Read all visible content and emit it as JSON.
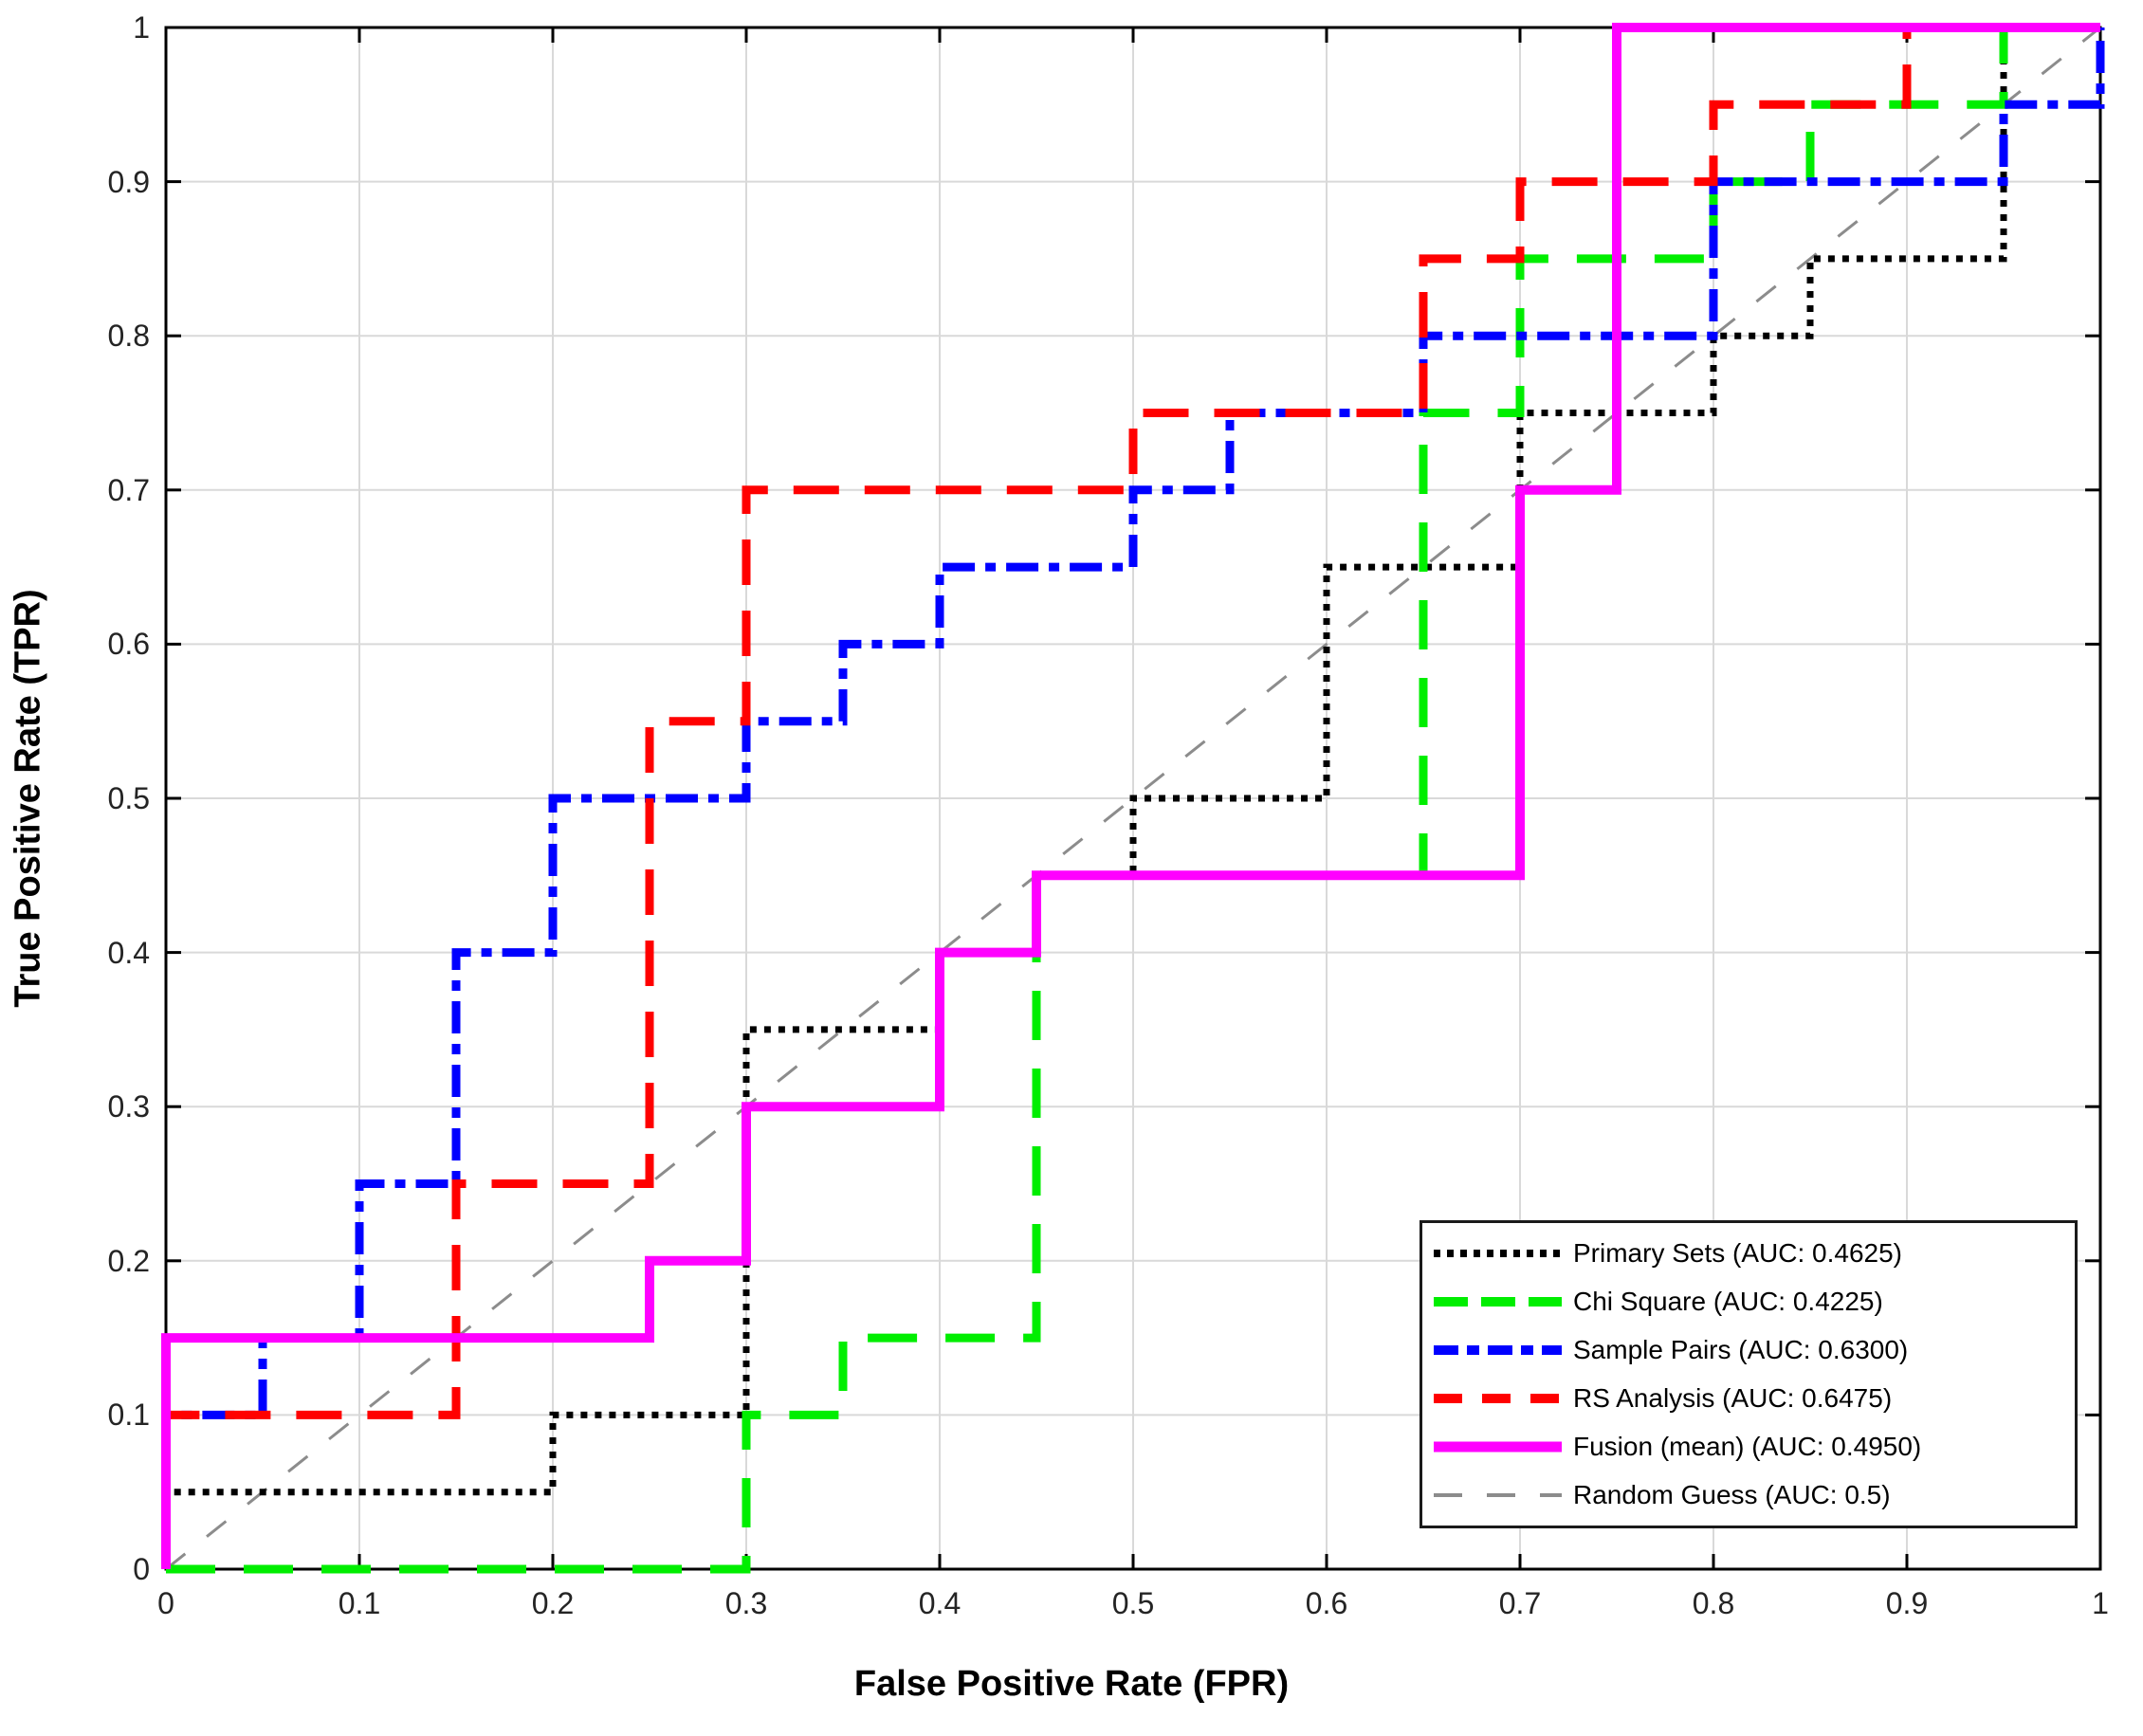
{
  "chart_data": {
    "type": "line",
    "title": "",
    "xlabel": "False Positive Rate (FPR)",
    "ylabel": "True Positive Rate (TPR)",
    "xlim": [
      0,
      1
    ],
    "ylim": [
      0,
      1
    ],
    "grid": true,
    "grid_color": "#d9d9d9",
    "axis_color": "#000000",
    "tick_label_color": "#242424",
    "legend_position": "lower-right",
    "tick_values": [
      0,
      0.1,
      0.2,
      0.3,
      0.4,
      0.5,
      0.6,
      0.7,
      0.8,
      0.9,
      1
    ],
    "x_tick_labels": [
      "0",
      "0.1",
      "0.2",
      "0.3",
      "0.4",
      "0.5",
      "0.6",
      "0.7",
      "0.8",
      "0.9",
      "1"
    ],
    "y_tick_labels": [
      "0",
      "0.1",
      "0.2",
      "0.3",
      "0.4",
      "0.5",
      "0.6",
      "0.7",
      "0.8",
      "0.9",
      "1"
    ],
    "series": [
      {
        "id": "primary-sets",
        "label": "Primary Sets (AUC: 0.4625)",
        "color": "#000000",
        "style": "dotted",
        "width": 7,
        "dash": "7 8",
        "legend_dash": "7 7",
        "points": [
          [
            0,
            0
          ],
          [
            0,
            0.05
          ],
          [
            0.2,
            0.05
          ],
          [
            0.2,
            0.1
          ],
          [
            0.3,
            0.1
          ],
          [
            0.3,
            0.35
          ],
          [
            0.4,
            0.35
          ],
          [
            0.4,
            0.4
          ],
          [
            0.45,
            0.4
          ],
          [
            0.45,
            0.45
          ],
          [
            0.5,
            0.45
          ],
          [
            0.5,
            0.5
          ],
          [
            0.6,
            0.5
          ],
          [
            0.6,
            0.65
          ],
          [
            0.7,
            0.65
          ],
          [
            0.7,
            0.75
          ],
          [
            0.8,
            0.75
          ],
          [
            0.8,
            0.8
          ],
          [
            0.85,
            0.8
          ],
          [
            0.85,
            0.85
          ],
          [
            0.95,
            0.85
          ],
          [
            0.95,
            1
          ],
          [
            1,
            1
          ]
        ]
      },
      {
        "id": "chi-square",
        "label": "Chi Square (AUC: 0.4225)",
        "color": "#00ee00",
        "style": "dashed",
        "width": 9,
        "dash": "52 30",
        "legend_dash": "36 14",
        "points": [
          [
            0,
            0
          ],
          [
            0.3,
            0
          ],
          [
            0.3,
            0.1
          ],
          [
            0.35,
            0.1
          ],
          [
            0.35,
            0.15
          ],
          [
            0.45,
            0.15
          ],
          [
            0.45,
            0.45
          ],
          [
            0.65,
            0.45
          ],
          [
            0.65,
            0.75
          ],
          [
            0.7,
            0.75
          ],
          [
            0.7,
            0.85
          ],
          [
            0.8,
            0.85
          ],
          [
            0.8,
            0.9
          ],
          [
            0.85,
            0.9
          ],
          [
            0.85,
            0.95
          ],
          [
            0.95,
            0.95
          ],
          [
            0.95,
            1
          ],
          [
            1,
            1
          ]
        ]
      },
      {
        "id": "sample-pairs",
        "label": "Sample Pairs (AUC: 0.6300)",
        "color": "#0000ff",
        "style": "dash-dot",
        "width": 9,
        "dash": "34 11 11 11",
        "legend_dash": "26 9 13 9",
        "points": [
          [
            0,
            0
          ],
          [
            0,
            0.1
          ],
          [
            0.05,
            0.1
          ],
          [
            0.05,
            0.15
          ],
          [
            0.1,
            0.15
          ],
          [
            0.1,
            0.25
          ],
          [
            0.15,
            0.25
          ],
          [
            0.15,
            0.4
          ],
          [
            0.2,
            0.4
          ],
          [
            0.2,
            0.5
          ],
          [
            0.3,
            0.5
          ],
          [
            0.3,
            0.55
          ],
          [
            0.35,
            0.55
          ],
          [
            0.35,
            0.6
          ],
          [
            0.4,
            0.6
          ],
          [
            0.4,
            0.65
          ],
          [
            0.5,
            0.65
          ],
          [
            0.5,
            0.7
          ],
          [
            0.55,
            0.7
          ],
          [
            0.55,
            0.75
          ],
          [
            0.65,
            0.75
          ],
          [
            0.65,
            0.8
          ],
          [
            0.8,
            0.8
          ],
          [
            0.8,
            0.9
          ],
          [
            0.95,
            0.9
          ],
          [
            0.95,
            0.95
          ],
          [
            1,
            0.95
          ],
          [
            1,
            1
          ]
        ]
      },
      {
        "id": "rs-analysis",
        "label": "RS Analysis (AUC: 0.6475)",
        "color": "#ff0000",
        "style": "dashed",
        "width": 9,
        "dash": "48 27",
        "legend_dash": "30 21",
        "points": [
          [
            0,
            0
          ],
          [
            0,
            0.1
          ],
          [
            0.15,
            0.1
          ],
          [
            0.15,
            0.25
          ],
          [
            0.25,
            0.25
          ],
          [
            0.25,
            0.55
          ],
          [
            0.3,
            0.55
          ],
          [
            0.3,
            0.7
          ],
          [
            0.5,
            0.7
          ],
          [
            0.5,
            0.75
          ],
          [
            0.65,
            0.75
          ],
          [
            0.65,
            0.85
          ],
          [
            0.7,
            0.85
          ],
          [
            0.7,
            0.9
          ],
          [
            0.8,
            0.9
          ],
          [
            0.8,
            0.95
          ],
          [
            0.9,
            0.95
          ],
          [
            0.9,
            1
          ],
          [
            1,
            1
          ]
        ]
      },
      {
        "id": "fusion-mean",
        "label": "Fusion (mean) (AUC: 0.4950)",
        "color": "#ff00ff",
        "style": "solid",
        "width": 10,
        "dash": "",
        "legend_dash": "",
        "points": [
          [
            0,
            0
          ],
          [
            0,
            0.15
          ],
          [
            0.25,
            0.15
          ],
          [
            0.25,
            0.2
          ],
          [
            0.3,
            0.2
          ],
          [
            0.3,
            0.3
          ],
          [
            0.4,
            0.3
          ],
          [
            0.4,
            0.4
          ],
          [
            0.45,
            0.4
          ],
          [
            0.45,
            0.45
          ],
          [
            0.7,
            0.45
          ],
          [
            0.7,
            0.7
          ],
          [
            0.75,
            0.7
          ],
          [
            0.75,
            1
          ],
          [
            1,
            1
          ]
        ]
      },
      {
        "id": "random-guess",
        "label": "Random Guess (AUC: 0.5)",
        "color": "#8c8c8c",
        "style": "dashed-thin",
        "width": 3,
        "dash": "26 29",
        "legend_dash": "30 26",
        "points": [
          [
            0,
            0
          ],
          [
            1,
            1
          ]
        ]
      }
    ]
  }
}
